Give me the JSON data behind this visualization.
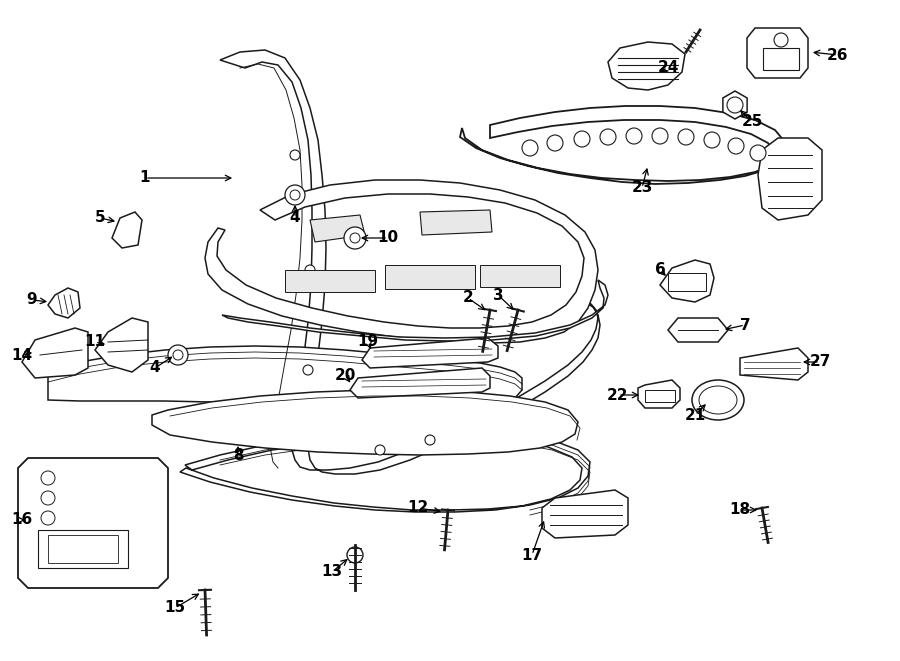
{
  "bg_color": "#ffffff",
  "line_color": "#1a1a1a",
  "lw": 1.1,
  "fig_w": 9.0,
  "fig_h": 6.61,
  "dpi": 100
}
